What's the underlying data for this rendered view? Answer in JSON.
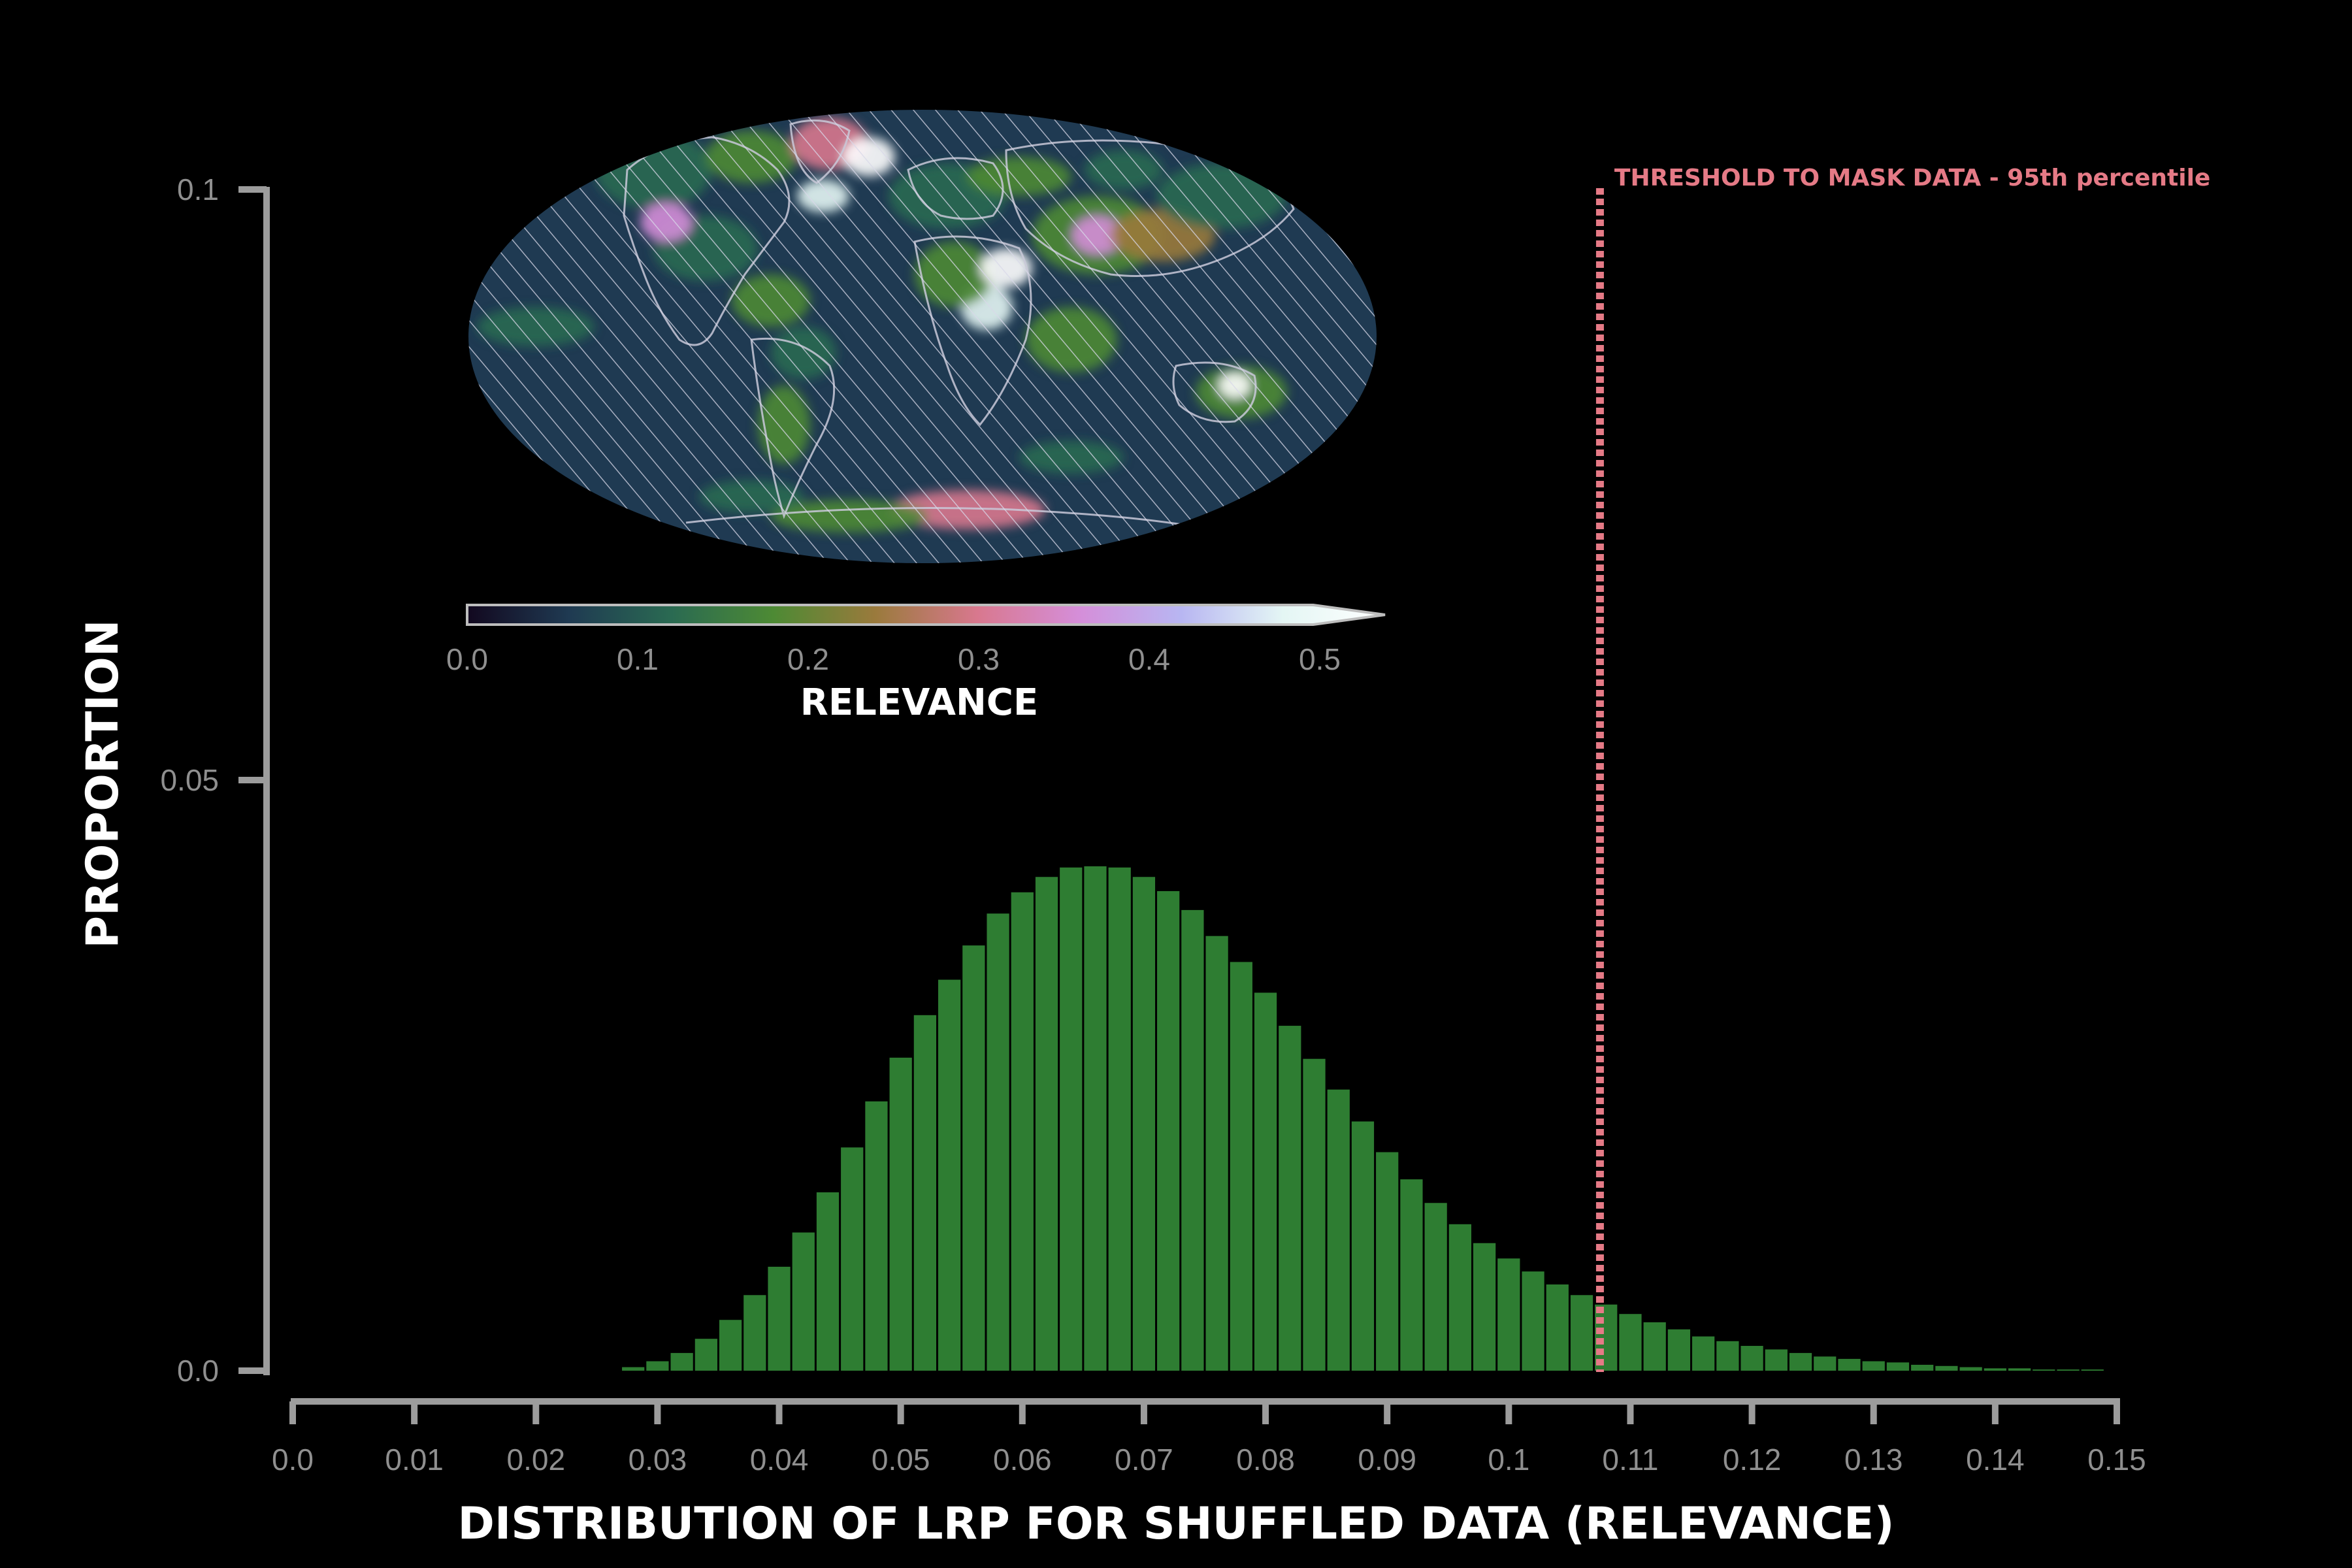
{
  "chart_data": {
    "type": "bar",
    "xlabel": "DISTRIBUTION OF LRP FOR SHUFFLED DATA (RELEVANCE)",
    "ylabel": "PROPORTION",
    "xlim": [
      0.0,
      0.15
    ],
    "ylim": [
      0.0,
      0.1
    ],
    "x_ticks": [
      "0.0",
      "0.01",
      "0.02",
      "0.03",
      "0.04",
      "0.05",
      "0.06",
      "0.07",
      "0.08",
      "0.09",
      "0.1",
      "0.11",
      "0.12",
      "0.13",
      "0.14",
      "0.15"
    ],
    "y_ticks": [
      "0.0",
      "0.05",
      "0.1"
    ],
    "bin_width": 0.002,
    "bin_starts": [
      0.027,
      0.029,
      0.031,
      0.033,
      0.035,
      0.037,
      0.039,
      0.041,
      0.043,
      0.045,
      0.047,
      0.049,
      0.051,
      0.053,
      0.055,
      0.057,
      0.059,
      0.061,
      0.063,
      0.065,
      0.067,
      0.069,
      0.071,
      0.073,
      0.075,
      0.077,
      0.079,
      0.081,
      0.083,
      0.085,
      0.087,
      0.089,
      0.091,
      0.093,
      0.095,
      0.097,
      0.099,
      0.101,
      0.103,
      0.105,
      0.107,
      0.109,
      0.111,
      0.113,
      0.115,
      0.117,
      0.119,
      0.121,
      0.123,
      0.125,
      0.127,
      0.129,
      0.131,
      0.133,
      0.135,
      0.137,
      0.139,
      0.141,
      0.143,
      0.145,
      0.147
    ],
    "values": [
      0.0003,
      0.0008,
      0.0015,
      0.0027,
      0.0043,
      0.0064,
      0.0088,
      0.0117,
      0.0151,
      0.0189,
      0.0228,
      0.0265,
      0.0301,
      0.0331,
      0.036,
      0.0387,
      0.0405,
      0.0418,
      0.0426,
      0.0427,
      0.0426,
      0.0418,
      0.0406,
      0.039,
      0.0368,
      0.0346,
      0.032,
      0.0292,
      0.0264,
      0.0238,
      0.0211,
      0.0185,
      0.0162,
      0.0142,
      0.0124,
      0.0108,
      0.0095,
      0.0084,
      0.0073,
      0.0064,
      0.0056,
      0.0048,
      0.0041,
      0.0035,
      0.0029,
      0.0025,
      0.0021,
      0.0018,
      0.0015,
      0.0012,
      0.001,
      0.0008,
      0.0007,
      0.0005,
      0.0004,
      0.0003,
      0.0002,
      0.0002,
      0.0001,
      0.0001,
      0.0001
    ],
    "bar_color": "#2e7d32",
    "threshold": {
      "value": 0.1075,
      "label": "THRESHOLD TO MASK DATA - 95th percentile",
      "color": "#e57a86"
    },
    "grid": false
  },
  "inset_map": {
    "projection": "mollweide",
    "hatching": true,
    "colorbar": {
      "title": "RELEVANCE",
      "ticks": [
        "0.0",
        "0.1",
        "0.2",
        "0.3",
        "0.4",
        "0.5"
      ],
      "colors": [
        "#12081f",
        "#1f3a52",
        "#2a6a52",
        "#4d8a34",
        "#9a7a3c",
        "#d8788e",
        "#d58ed9",
        "#b8b6f2",
        "#e4f6f4",
        "#ffffff"
      ],
      "extend": "max"
    }
  }
}
